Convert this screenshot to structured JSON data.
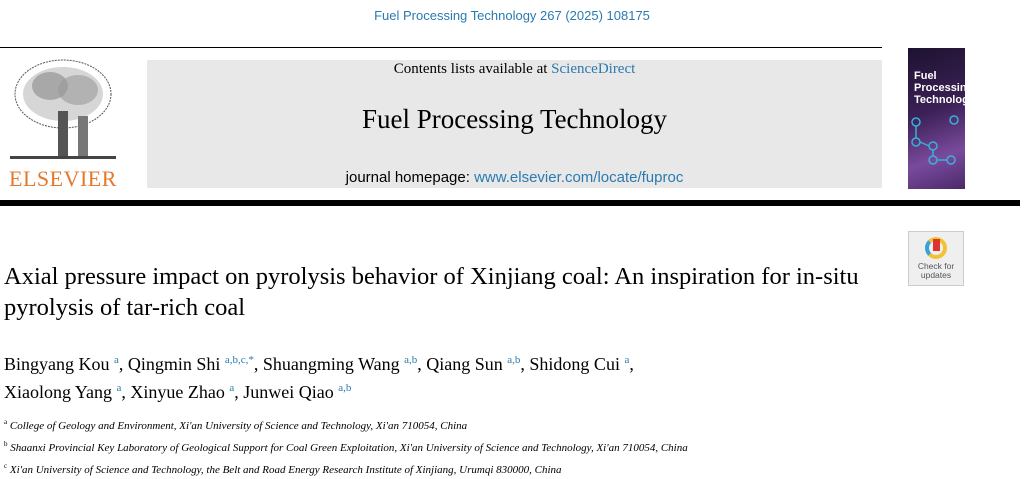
{
  "citation": "Fuel Processing Technology 267 (2025) 108175",
  "header": {
    "contents_prefix": "Contents lists available at ",
    "contents_link": "ScienceDirect",
    "journal_title": "Fuel Processing Technology",
    "homepage_prefix": "journal homepage: ",
    "homepage_link": "www.elsevier.com/locate/fuproc",
    "publisher": "ELSEVIER",
    "cover_title": "Fuel Processing Technology"
  },
  "badge": {
    "line1": "Check for",
    "line2": "updates"
  },
  "title": "Axial pressure impact on pyrolysis behavior of Xinjiang coal: An inspiration for in-situ pyrolysis of tar-rich coal",
  "authors": [
    {
      "name": "Bingyang Kou",
      "aff": "a"
    },
    {
      "name": "Qingmin Shi",
      "aff": "a,b,c,*"
    },
    {
      "name": "Shuangming Wang",
      "aff": "a,b"
    },
    {
      "name": "Qiang Sun",
      "aff": "a,b"
    },
    {
      "name": "Shidong Cui",
      "aff": "a"
    },
    {
      "name": "Xiaolong Yang",
      "aff": "a"
    },
    {
      "name": "Xinyue Zhao",
      "aff": "a"
    },
    {
      "name": "Junwei Qiao",
      "aff": "a,b"
    }
  ],
  "affiliations": [
    {
      "key": "a",
      "text": "College of Geology and Environment, Xi'an University of Science and Technology, Xi'an 710054, China"
    },
    {
      "key": "b",
      "text": "Shaanxi Provincial Key Laboratory of Geological Support for Coal Green Exploitation, Xi'an University of Science and Technology, Xi'an 710054, China"
    },
    {
      "key": "c",
      "text": "Xi'an University of Science and Technology, the Belt and Road Energy Research Institute of Xinjiang, Urumqi 830000, China"
    }
  ]
}
